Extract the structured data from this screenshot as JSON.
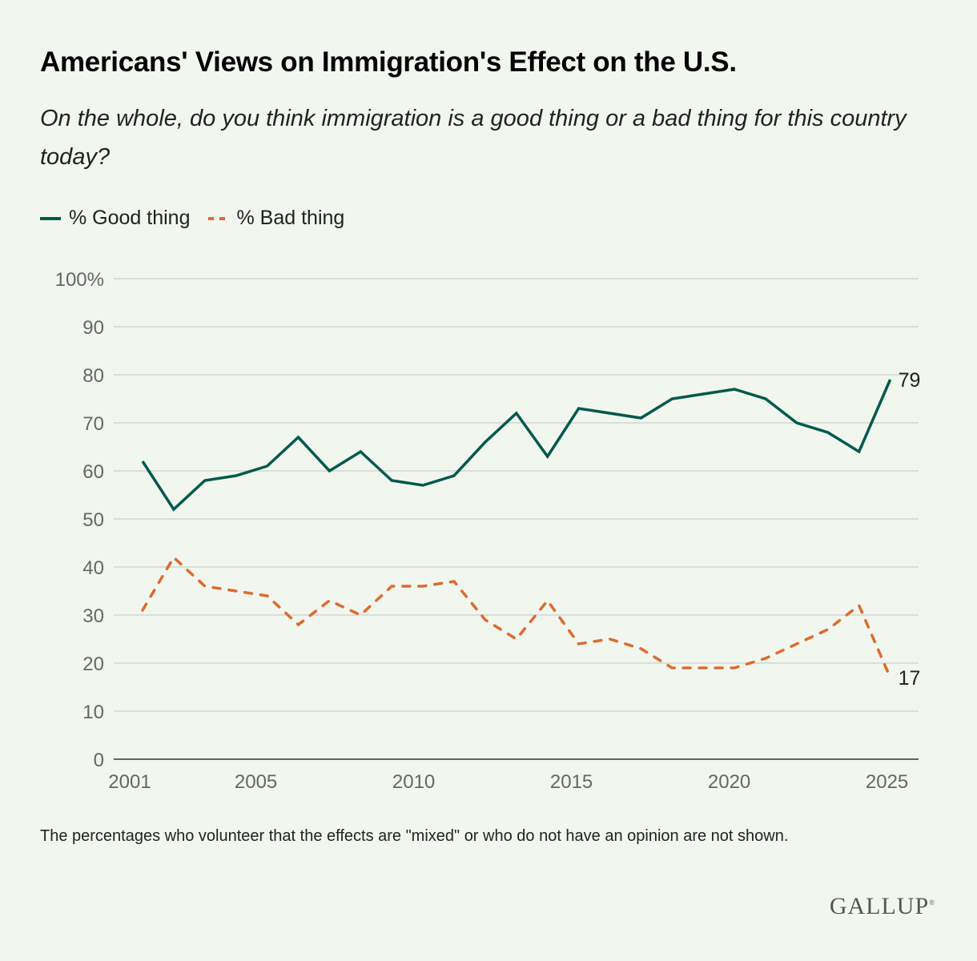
{
  "title": "Americans' Views on Immigration's Effect on the U.S.",
  "subtitle": "On the whole, do you think immigration is a good thing or a bad thing for this country today?",
  "note": "The percentages who volunteer that the effects are \"mixed\" or who do not have an opinion are not shown.",
  "logo": "GALLUP",
  "colors": {
    "background": "#f1f7ef",
    "good": "#00594c",
    "bad": "#e06a2e",
    "grid": "#d9ded8"
  },
  "chart_data": {
    "type": "line",
    "title": "Americans' Views on Immigration's Effect on the U.S.",
    "x": [
      2001,
      2002,
      2003,
      2004,
      2005,
      2006,
      2007,
      2008,
      2009,
      2010,
      2011,
      2012,
      2013,
      2014,
      2015,
      2016,
      2017,
      2018,
      2019,
      2020,
      2021,
      2022,
      2023,
      2024,
      2025
    ],
    "series": [
      {
        "name": "% Good thing",
        "style": "solid",
        "values": [
          62,
          52,
          58,
          59,
          61,
          67,
          60,
          64,
          58,
          57,
          59,
          66,
          72,
          63,
          73,
          72,
          71,
          75,
          76,
          77,
          75,
          70,
          68,
          64,
          79
        ]
      },
      {
        "name": "% Bad thing",
        "style": "dashed",
        "values": [
          31,
          42,
          36,
          35,
          34,
          28,
          33,
          30,
          36,
          36,
          37,
          29,
          25,
          33,
          24,
          25,
          23,
          19,
          19,
          19,
          21,
          24,
          27,
          32,
          17
        ]
      }
    ],
    "end_labels": [
      "79",
      "17"
    ],
    "y_ticks": [
      "0",
      "10",
      "20",
      "30",
      "40",
      "50",
      "60",
      "70",
      "80",
      "90",
      "100%"
    ],
    "x_ticks": [
      "2001",
      "2005",
      "2010",
      "2015",
      "2020",
      "2025"
    ],
    "ylim": [
      0,
      100
    ],
    "grid": true,
    "legend": "top-left"
  }
}
